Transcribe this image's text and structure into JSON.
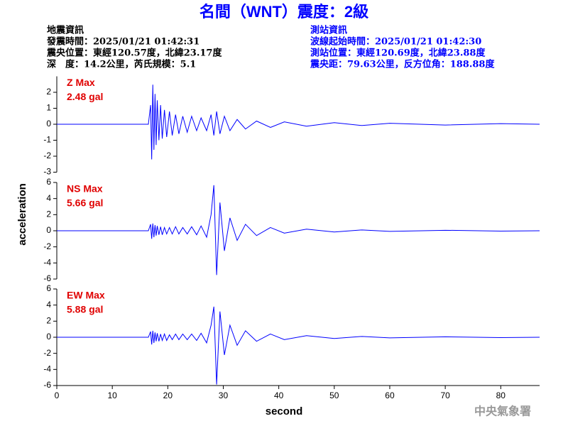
{
  "header": {
    "title": "名間（WNT）震度：2級",
    "left": [
      "地震資訊",
      "發震時間：2025/01/21 01:42:31",
      "震央位置：東經120.57度，北緯23.17度",
      "深　度：14.2公里，芮氏規模：5.1"
    ],
    "right": [
      "測站資訊",
      "波線起始時間：2025/01/21 01:42:30",
      "測站位置：東經120.69度，北緯23.88度",
      "震央距：79.63公里，反方位角：188.88度"
    ]
  },
  "labels": {
    "y": "acceleration",
    "x": "second",
    "credit": "中央氣象署"
  },
  "chart_data": [
    {
      "type": "line",
      "color": "#0000ff",
      "annotation": [
        "Z Max",
        "2.48 gal"
      ],
      "xlim": [
        0,
        87
      ],
      "ylim": [
        -3,
        3
      ],
      "yticks": [
        -3,
        -2,
        -1,
        0,
        1,
        2
      ],
      "x": [
        0,
        16.5,
        16.9,
        17.1,
        17.3,
        17.5,
        17.7,
        17.9,
        18.1,
        18.4,
        18.7,
        19.0,
        19.4,
        19.8,
        20.3,
        20.8,
        21.4,
        22.0,
        22.7,
        23.5,
        24.3,
        25.2,
        26.0,
        27.0,
        27.8,
        28.3,
        28.8,
        29.4,
        30.2,
        31.2,
        32.5,
        34,
        36,
        38.5,
        41,
        45,
        50,
        55,
        60,
        70,
        80,
        87
      ],
      "values": [
        0,
        0,
        1.2,
        -2.2,
        2.48,
        -1.6,
        1.9,
        -1.3,
        1.5,
        -1.0,
        1.2,
        -0.9,
        0.9,
        -0.8,
        0.8,
        -0.7,
        0.6,
        -0.6,
        0.5,
        -0.5,
        0.5,
        -0.4,
        0.4,
        -0.4,
        0.6,
        -0.7,
        0.8,
        -0.6,
        0.5,
        -0.4,
        0.3,
        -0.3,
        0.2,
        -0.2,
        0.15,
        -0.12,
        0.1,
        -0.08,
        0.06,
        -0.05,
        0.04,
        0
      ]
    },
    {
      "type": "line",
      "color": "#0000ff",
      "annotation": [
        "NS Max",
        "5.66 gal"
      ],
      "xlim": [
        0,
        87
      ],
      "ylim": [
        -6,
        6
      ],
      "yticks": [
        -6,
        -4,
        -2,
        0,
        2,
        4,
        6
      ],
      "x": [
        0,
        16.5,
        16.9,
        17.1,
        17.3,
        17.5,
        17.7,
        17.9,
        18.1,
        18.4,
        18.7,
        19.0,
        19.4,
        19.8,
        20.3,
        20.8,
        21.4,
        22.0,
        22.7,
        23.5,
        24.3,
        25.2,
        26.0,
        27.0,
        27.8,
        28.3,
        28.8,
        29.4,
        30.2,
        31.2,
        32.5,
        34,
        36,
        38.5,
        41,
        45,
        50,
        55,
        60,
        70,
        80,
        87
      ],
      "values": [
        0,
        0,
        0.8,
        -1.0,
        0.9,
        -0.8,
        0.7,
        -0.6,
        0.6,
        -0.5,
        0.5,
        -0.5,
        0.4,
        -0.4,
        0.4,
        -0.4,
        0.5,
        -0.4,
        0.4,
        -0.4,
        0.5,
        -0.5,
        0.6,
        -0.8,
        2.0,
        5.66,
        -5.5,
        3.5,
        -2.5,
        1.6,
        -1.2,
        0.8,
        -0.6,
        0.4,
        -0.3,
        0.2,
        -0.15,
        0.1,
        -0.08,
        0.06,
        -0.04,
        0
      ]
    },
    {
      "type": "line",
      "color": "#0000ff",
      "annotation": [
        "EW Max",
        "5.88 gal"
      ],
      "xlim": [
        0,
        87
      ],
      "ylim": [
        -6,
        6
      ],
      "yticks": [
        -6,
        -4,
        -2,
        0,
        2,
        4,
        6
      ],
      "xticks": [
        0,
        10,
        20,
        30,
        40,
        50,
        60,
        70,
        80
      ],
      "x": [
        0,
        16.5,
        16.9,
        17.1,
        17.3,
        17.5,
        17.7,
        17.9,
        18.1,
        18.4,
        18.7,
        19.0,
        19.4,
        19.8,
        20.3,
        20.8,
        21.4,
        22.0,
        22.7,
        23.5,
        24.3,
        25.2,
        26.0,
        27.0,
        27.8,
        28.3,
        28.8,
        29.4,
        30.2,
        31.2,
        32.5,
        34,
        36,
        38.5,
        41,
        45,
        50,
        55,
        60,
        70,
        80,
        87
      ],
      "values": [
        0,
        0,
        0.7,
        -0.9,
        0.8,
        -0.7,
        0.6,
        -0.5,
        0.5,
        -0.5,
        0.4,
        -0.4,
        0.4,
        -0.4,
        0.3,
        -0.3,
        0.4,
        -0.3,
        0.4,
        -0.3,
        0.4,
        -0.4,
        0.5,
        -0.7,
        1.5,
        3.8,
        -5.88,
        3.2,
        -2.2,
        1.5,
        -1.0,
        0.8,
        -0.5,
        0.4,
        -0.3,
        0.2,
        -0.15,
        0.1,
        -0.08,
        0.05,
        -0.04,
        0
      ]
    }
  ]
}
